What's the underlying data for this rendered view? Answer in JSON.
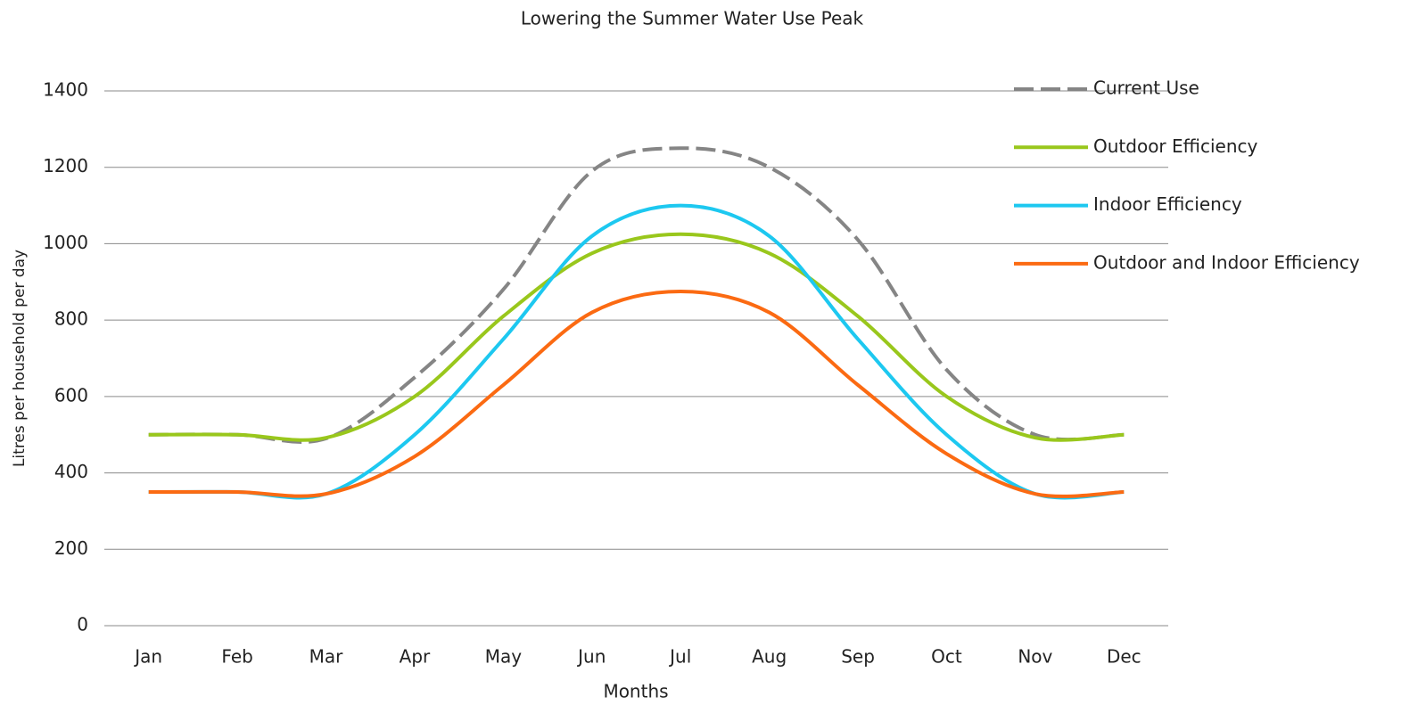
{
  "chart_data": {
    "type": "line",
    "title": "Lowering the Summer Water Use Peak",
    "x_label": "Months",
    "y_label": "Litres per household per day",
    "categories": [
      "Jan",
      "Feb",
      "Mar",
      "Apr",
      "May",
      "Jun",
      "Jul",
      "Aug",
      "Sep",
      "Oct",
      "Nov",
      "Dec"
    ],
    "series": [
      {
        "name": "Current Use",
        "color": "#858585",
        "dashed": true,
        "values": [
          500,
          500,
          490,
          650,
          880,
          1190,
          1250,
          1200,
          1010,
          670,
          500,
          500
        ]
      },
      {
        "name": "Outdoor Efficiency",
        "color": "#99c71c",
        "values": [
          500,
          500,
          492,
          600,
          810,
          975,
          1025,
          975,
          810,
          600,
          492,
          500
        ]
      },
      {
        "name": "Indoor Efficiency",
        "color": "#1dc8f0",
        "values": [
          350,
          350,
          345,
          500,
          750,
          1020,
          1100,
          1020,
          750,
          500,
          345,
          350
        ]
      },
      {
        "name": "Outdoor and Indoor Efficiency",
        "color": "#fb6a12",
        "values": [
          350,
          350,
          345,
          443,
          630,
          820,
          875,
          820,
          630,
          450,
          345,
          350
        ]
      }
    ],
    "ylim": [
      0,
      1400
    ],
    "yticks": [
      0,
      200,
      400,
      600,
      800,
      1000,
      1200,
      1400
    ],
    "grid": true,
    "legend": "right"
  }
}
